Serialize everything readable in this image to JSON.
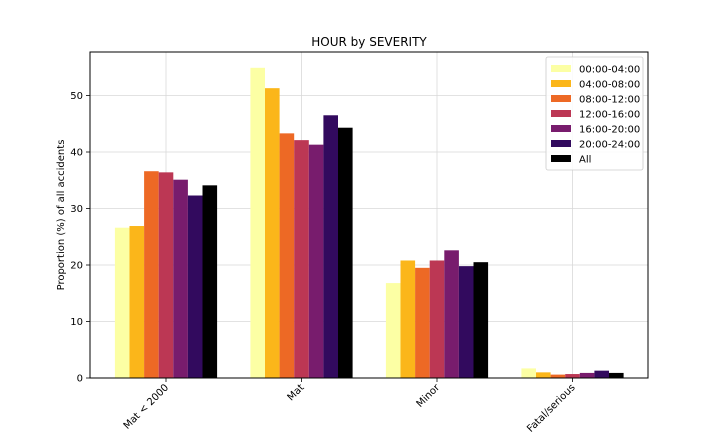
{
  "chart_data": {
    "type": "bar",
    "title": "HOUR by SEVERITY",
    "xlabel": "",
    "ylabel": "Proportion (%) of all accidents",
    "ylim": [
      0,
      57.7
    ],
    "yticks": [
      0,
      10,
      20,
      30,
      40,
      50
    ],
    "grid": true,
    "legend_position": "top-right",
    "categories": [
      "Mat < 2000",
      "Mat",
      "Minor",
      "Fatal/serious"
    ],
    "series": [
      {
        "name": "00:00-04:00",
        "color": "#fcffa4",
        "values": [
          26.6,
          54.9,
          16.8,
          1.7
        ]
      },
      {
        "name": "04:00-08:00",
        "color": "#fbb61a",
        "values": [
          26.9,
          51.3,
          20.8,
          1.0
        ]
      },
      {
        "name": "08:00-12:00",
        "color": "#ed6925",
        "values": [
          36.6,
          43.3,
          19.5,
          0.6
        ]
      },
      {
        "name": "12:00-16:00",
        "color": "#bc3754",
        "values": [
          36.4,
          42.1,
          20.8,
          0.7
        ]
      },
      {
        "name": "16:00-20:00",
        "color": "#781c6d",
        "values": [
          35.1,
          41.3,
          22.6,
          0.9
        ]
      },
      {
        "name": "20:00-24:00",
        "color": "#320a5e",
        "values": [
          32.3,
          46.5,
          19.8,
          1.3
        ]
      },
      {
        "name": "All",
        "color": "#000000",
        "values": [
          34.1,
          44.3,
          20.5,
          0.9
        ]
      }
    ]
  }
}
